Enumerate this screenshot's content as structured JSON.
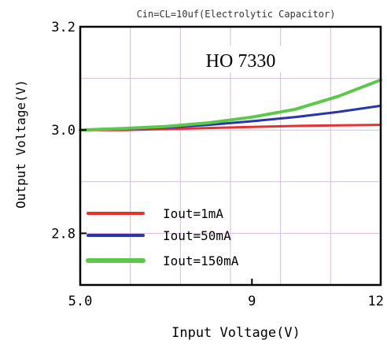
{
  "chart_data": {
    "type": "line",
    "title": "Cin=CL=10uf(Electrolytic Capacitor)",
    "annotation": "HO 7330",
    "xlabel": "Input Voltage(V)",
    "ylabel": "Output Voltage(V)",
    "xlim": [
      5.0,
      12
    ],
    "ylim": [
      2.7,
      3.2
    ],
    "x_ticks": [
      5.0,
      9,
      12
    ],
    "x_tick_labels": [
      "5.0",
      "9",
      "12"
    ],
    "y_ticks": [
      2.8,
      3.0,
      3.2
    ],
    "y_tick_labels": [
      "2.8",
      "3.0",
      "3.2"
    ],
    "grid": true,
    "legend_position": "bottom-left",
    "series": [
      {
        "name": "Iout=1mA",
        "color": "#e23232",
        "x": [
          5.0,
          6.0,
          7.0,
          8.0,
          9.0,
          10.0,
          11.0,
          12.0
        ],
        "y": [
          3.0,
          3.0,
          3.002,
          3.004,
          3.006,
          3.008,
          3.009,
          3.01
        ]
      },
      {
        "name": "Iout=50mA",
        "color": "#2936a8",
        "x": [
          5.0,
          6.0,
          7.0,
          8.0,
          9.0,
          10.0,
          11.0,
          12.0
        ],
        "y": [
          3.0,
          3.002,
          3.005,
          3.01,
          3.017,
          3.025,
          3.035,
          3.047
        ]
      },
      {
        "name": "Iout=150mA",
        "color": "#5cc84a",
        "x": [
          5.0,
          6.0,
          7.0,
          8.0,
          9.0,
          10.0,
          11.0,
          12.0
        ],
        "y": [
          3.0,
          3.003,
          3.007,
          3.014,
          3.025,
          3.04,
          3.065,
          3.097
        ]
      }
    ]
  }
}
